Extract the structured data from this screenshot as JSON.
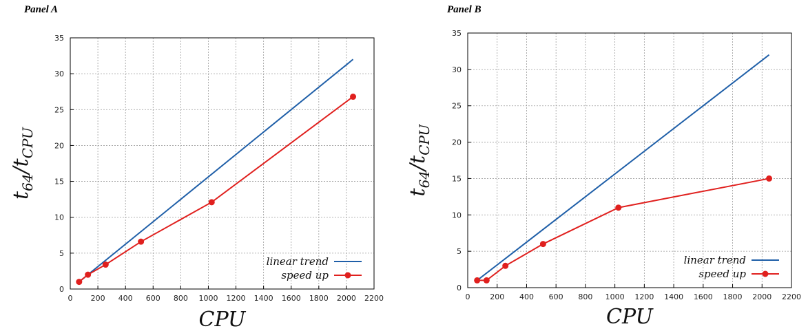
{
  "colors": {
    "linear": "#1f5fa8",
    "speedup": "#e0201e",
    "grid": "#9a9a9a"
  },
  "chart_data": [
    {
      "type": "line",
      "panel_label": "Panel A",
      "xlabel": "CPU",
      "ylabel": "t64/tCPU",
      "ylabel_main": "t",
      "ylabel_sub1": "64",
      "ylabel_slash": "/t",
      "ylabel_sub2": "CPU",
      "xlim": [
        0,
        2200
      ],
      "ylim": [
        0,
        35
      ],
      "xticks": [
        0,
        200,
        400,
        600,
        800,
        1000,
        1200,
        1400,
        1600,
        1800,
        2000,
        2200
      ],
      "yticks": [
        0,
        5,
        10,
        15,
        20,
        25,
        30,
        35
      ],
      "grid": true,
      "legend_position": "bottom-right",
      "series": [
        {
          "name": "linear trend",
          "x": [
            64,
            2048
          ],
          "y": [
            1,
            32
          ],
          "markers": false
        },
        {
          "name": "speed up",
          "x": [
            64,
            128,
            256,
            512,
            1024,
            2048
          ],
          "y": [
            1,
            2,
            3.4,
            6.6,
            12.1,
            26.8
          ],
          "markers": true
        }
      ]
    },
    {
      "type": "line",
      "panel_label": "Panel B",
      "xlabel": "CPU",
      "ylabel": "t64/tCPU",
      "ylabel_main": "t",
      "ylabel_sub1": "64",
      "ylabel_slash": "/t",
      "ylabel_sub2": "CPU",
      "xlim": [
        0,
        2200
      ],
      "ylim": [
        0,
        35
      ],
      "xticks": [
        0,
        200,
        400,
        600,
        800,
        1000,
        1200,
        1400,
        1600,
        1800,
        2000,
        2200
      ],
      "yticks": [
        0,
        5,
        10,
        15,
        20,
        25,
        30,
        35
      ],
      "grid": true,
      "legend_position": "bottom-right",
      "series": [
        {
          "name": "linear trend",
          "x": [
            64,
            2048
          ],
          "y": [
            1,
            32
          ],
          "markers": false
        },
        {
          "name": "speed up",
          "x": [
            64,
            128,
            256,
            512,
            1024,
            2048
          ],
          "y": [
            1,
            1,
            3,
            6,
            11,
            15
          ],
          "markers": true
        }
      ]
    }
  ]
}
